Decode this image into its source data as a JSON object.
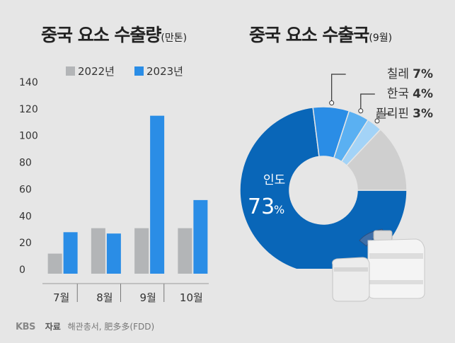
{
  "branding": {
    "logo": "KBS"
  },
  "footer": {
    "source_label": "자료",
    "source_text": "해관총서, 肥多多(FDD)"
  },
  "chart_data": [
    {
      "type": "bar",
      "title": "중국 요소 수출량",
      "unit": "(만톤)",
      "categories": [
        "7월",
        "8월",
        "9월",
        "10월"
      ],
      "series": [
        {
          "name": "2022년",
          "color": "#b3b5b7",
          "values": [
            15,
            34,
            34,
            34
          ]
        },
        {
          "name": "2023년",
          "color": "#2a8de6",
          "values": [
            31,
            30,
            118,
            55
          ]
        }
      ],
      "y_ticks": [
        "0",
        "20",
        "40",
        "60",
        "80",
        "100",
        "120",
        "140"
      ],
      "ylim": [
        0,
        140
      ],
      "legend": "top"
    },
    {
      "type": "pie",
      "title": "중국 요소 수출국",
      "unit": "(9월)",
      "slices": [
        {
          "name": "인도",
          "value": 73,
          "label": "73",
          "pct_sign": "%",
          "color": "#0966b8"
        },
        {
          "name": "칠레",
          "value": 7,
          "label": "7%",
          "color": "#2a8de6"
        },
        {
          "name": "한국",
          "value": 4,
          "label": "4%",
          "color": "#5ab0f2"
        },
        {
          "name": "필리핀",
          "value": 3,
          "label": "3%",
          "color": "#a3d3f7"
        },
        {
          "name": "",
          "value": 13,
          "color": "#cfcfcf"
        }
      ]
    }
  ]
}
